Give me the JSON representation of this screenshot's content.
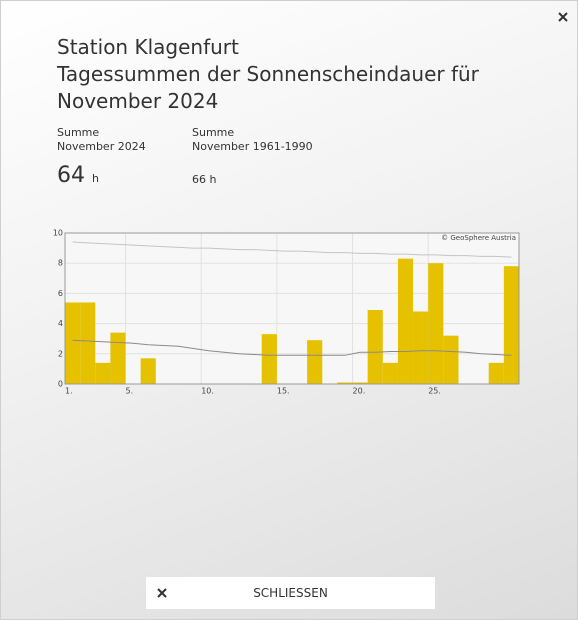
{
  "header": {
    "title_lines": [
      "Station Klagenfurt",
      "Tagessummen der Sonnenscheindauer für",
      "November 2024"
    ]
  },
  "stats": [
    {
      "label": "Summe",
      "period": "November 2024",
      "value": 64,
      "unit": "h"
    },
    {
      "label": "Summe",
      "period": "November 1961-1990",
      "value": 66,
      "unit": "h"
    }
  ],
  "chart_data": {
    "type": "bar",
    "credit": "© GeoSphere Austria",
    "x": [
      1,
      2,
      3,
      4,
      5,
      6,
      7,
      8,
      9,
      10,
      11,
      12,
      13,
      14,
      15,
      16,
      17,
      18,
      19,
      20,
      21,
      22,
      23,
      24,
      25,
      26,
      27,
      28,
      29,
      30
    ],
    "values": [
      5.4,
      5.4,
      1.4,
      3.4,
      0,
      1.7,
      0,
      0,
      0,
      0,
      0,
      0,
      0,
      3.3,
      0,
      0,
      2.9,
      0,
      0.1,
      0.1,
      4.9,
      1.4,
      8.3,
      4.8,
      8.0,
      3.2,
      0,
      0,
      1.4,
      7.8
    ],
    "color": "#e5c100",
    "lines": [
      {
        "color": "#c4c4c4",
        "values": [
          9.4,
          9.35,
          9.3,
          9.25,
          9.2,
          9.15,
          9.1,
          9.05,
          9.0,
          9.0,
          8.95,
          8.9,
          8.9,
          8.85,
          8.8,
          8.8,
          8.75,
          8.7,
          8.7,
          8.65,
          8.65,
          8.6,
          8.6,
          8.55,
          8.55,
          8.5,
          8.5,
          8.45,
          8.45,
          8.4
        ]
      },
      {
        "color": "#8a8a8a",
        "values": [
          2.9,
          2.85,
          2.8,
          2.75,
          2.7,
          2.6,
          2.55,
          2.5,
          2.35,
          2.2,
          2.1,
          2.0,
          1.95,
          1.9,
          1.9,
          1.9,
          1.9,
          1.9,
          1.9,
          2.1,
          2.1,
          2.15,
          2.15,
          2.2,
          2.2,
          2.15,
          2.1,
          2.0,
          1.95,
          1.9
        ]
      }
    ],
    "xlim": [
      1,
      31
    ],
    "xticks": [
      {
        "value": 1,
        "label": "1."
      },
      {
        "value": 5,
        "label": "5."
      },
      {
        "value": 10,
        "label": "10."
      },
      {
        "value": 15,
        "label": "15."
      },
      {
        "value": 20,
        "label": "20."
      },
      {
        "value": 25,
        "label": "25."
      }
    ],
    "ylim": [
      0,
      10
    ],
    "yticks": [
      0,
      2,
      4,
      6,
      8,
      10
    ],
    "grid": true
  },
  "footer": {
    "button": "SCHLIESSEN"
  }
}
